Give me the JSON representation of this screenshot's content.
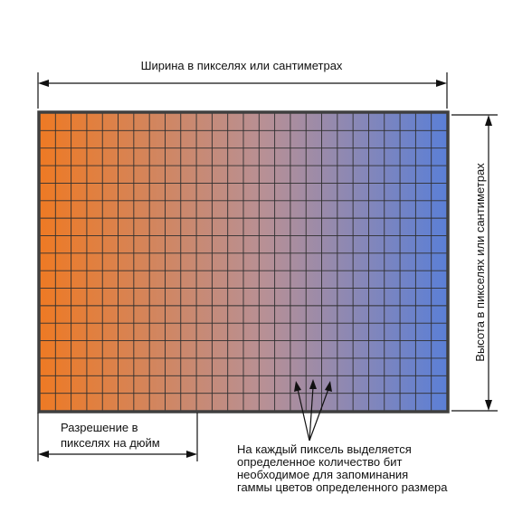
{
  "labels": {
    "width": "Ширина в пикселях или сантиметрах",
    "height": "Высота в пикселях или сантиметрах",
    "resolution_line1": "Разрешение в",
    "resolution_line2": "пикселях на дюйм",
    "pixel_note_line1": "На каждый пиксель выделяется",
    "pixel_note_line2": "определенное количество бит",
    "pixel_note_line3": "необходимое для запоминания",
    "pixel_note_line4": "гаммы цветов определенного размера"
  },
  "colors": {
    "gradient_left": "#ee7a24",
    "gradient_middle": "#b89095",
    "gradient_right": "#5b7fd6",
    "grid": "#2f2f2f",
    "frame": "#3f3f3f",
    "text": "#111111"
  },
  "grid": {
    "columns": 26,
    "rows": 17
  }
}
